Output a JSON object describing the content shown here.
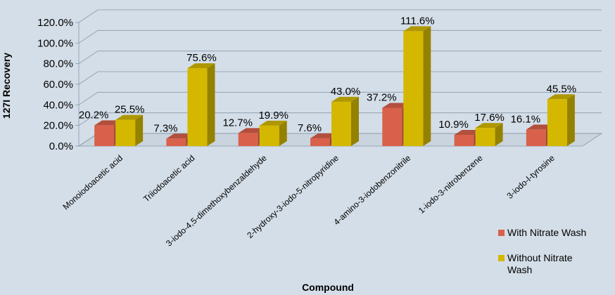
{
  "chart_data": {
    "type": "bar",
    "title": "",
    "xlabel": "Compound",
    "ylabel": "127I Recovery",
    "ylim": [
      0,
      120
    ],
    "yticks": [
      "0.0%",
      "20.0%",
      "40.0%",
      "60.0%",
      "80.0%",
      "100.0%",
      "120.0%"
    ],
    "categories": [
      "Monoiodoacetic acid",
      "Triiodoacetic acid",
      "3-iodo-4,5-dimethoxybenzaldehyde",
      "2-hydroxy-3-iodo-5-nitropyridine",
      "4-amino-3-iodobenzonitrile",
      "1-iodo-3-nitrobenzene",
      "3-iodo-l-tyrosine"
    ],
    "series": [
      {
        "name": "With Nitrate Wash",
        "values": [
          20.2,
          7.3,
          12.7,
          7.6,
          37.2,
          10.9,
          16.1
        ],
        "labels": [
          "20.2%",
          "7.3%",
          "12.7%",
          "7.6%",
          "37.2%",
          "10.9%",
          "16.1%"
        ],
        "color": "#D9604A"
      },
      {
        "name": "Without Nitrate Wash",
        "values": [
          25.5,
          75.6,
          19.9,
          43.0,
          111.6,
          17.6,
          45.5
        ],
        "labels": [
          "25.5%",
          "75.6%",
          "19.9%",
          "43.0%",
          "111.6%",
          "17.6%",
          "45.5%"
        ],
        "color": "#D4B800"
      }
    ],
    "grid": true,
    "legend_position": "bottom-right",
    "style": "3d-clustered-column"
  }
}
